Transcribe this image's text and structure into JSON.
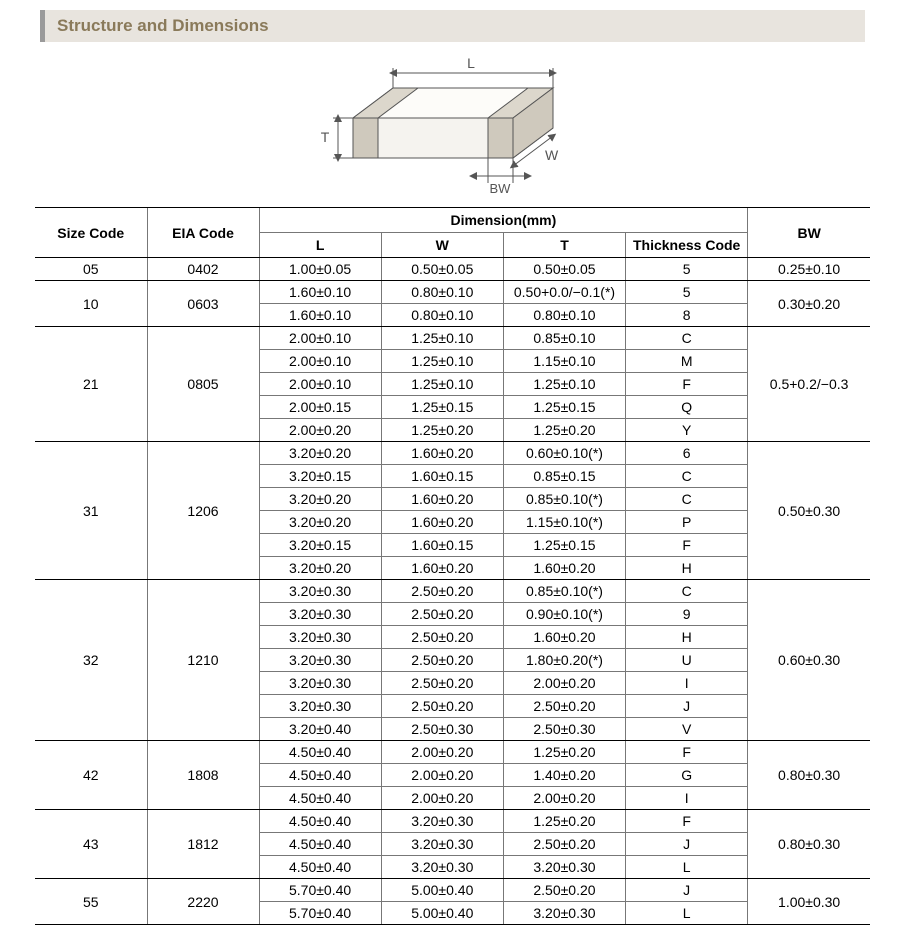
{
  "title": "Structure and Dimensions",
  "diagram": {
    "labels": {
      "L": "L",
      "W": "W",
      "T": "T",
      "BW": "BW"
    },
    "stroke": "#555555",
    "fill_body": "#f5f3ef",
    "fill_side": "#e9e6df",
    "fill_top": "#fdfcf9",
    "fill_band": "#cfc9bd",
    "label_color": "#555555",
    "label_fontsize": 14
  },
  "table": {
    "header": {
      "size": "Size Code",
      "eia": "EIA Code",
      "dim": "Dimension(mm)",
      "L": "L",
      "W": "W",
      "T": "T",
      "thick": "Thickness Code",
      "BW": "BW"
    },
    "groups": [
      {
        "size": "05",
        "eia": "0402",
        "bw": "0.25±0.10",
        "rows": [
          {
            "L": "1.00±0.05",
            "W": "0.50±0.05",
            "T": "0.50±0.05",
            "code": "5"
          }
        ]
      },
      {
        "size": "10",
        "eia": "0603",
        "bw": "0.30±0.20",
        "rows": [
          {
            "L": "1.60±0.10",
            "W": "0.80±0.10",
            "T": "0.50+0.0/−0.1(*)",
            "code": "5"
          },
          {
            "L": "1.60±0.10",
            "W": "0.80±0.10",
            "T": "0.80±0.10",
            "code": "8"
          }
        ]
      },
      {
        "size": "21",
        "eia": "0805",
        "bw": "0.5+0.2/−0.3",
        "rows": [
          {
            "L": "2.00±0.10",
            "W": "1.25±0.10",
            "T": "0.85±0.10",
            "code": "C"
          },
          {
            "L": "2.00±0.10",
            "W": "1.25±0.10",
            "T": "1.15±0.10",
            "code": "M"
          },
          {
            "L": "2.00±0.10",
            "W": "1.25±0.10",
            "T": "1.25±0.10",
            "code": "F"
          },
          {
            "L": "2.00±0.15",
            "W": "1.25±0.15",
            "T": "1.25±0.15",
            "code": "Q"
          },
          {
            "L": "2.00±0.20",
            "W": "1.25±0.20",
            "T": "1.25±0.20",
            "code": "Y"
          }
        ]
      },
      {
        "size": "31",
        "eia": "1206",
        "bw": "0.50±0.30",
        "rows": [
          {
            "L": "3.20±0.20",
            "W": "1.60±0.20",
            "T": "0.60±0.10(*)",
            "code": "6"
          },
          {
            "L": "3.20±0.15",
            "W": "1.60±0.15",
            "T": "0.85±0.15",
            "code": "C"
          },
          {
            "L": "3.20±0.20",
            "W": "1.60±0.20",
            "T": "0.85±0.10(*)",
            "code": "C"
          },
          {
            "L": "3.20±0.20",
            "W": "1.60±0.20",
            "T": "1.15±0.10(*)",
            "code": "P"
          },
          {
            "L": "3.20±0.15",
            "W": "1.60±0.15",
            "T": "1.25±0.15",
            "code": "F"
          },
          {
            "L": "3.20±0.20",
            "W": "1.60±0.20",
            "T": "1.60±0.20",
            "code": "H"
          }
        ]
      },
      {
        "size": "32",
        "eia": "1210",
        "bw": "0.60±0.30",
        "rows": [
          {
            "L": "3.20±0.30",
            "W": "2.50±0.20",
            "T": "0.85±0.10(*)",
            "code": "C"
          },
          {
            "L": "3.20±0.30",
            "W": "2.50±0.20",
            "T": "0.90±0.10(*)",
            "code": "9"
          },
          {
            "L": "3.20±0.30",
            "W": "2.50±0.20",
            "T": "1.60±0.20",
            "code": "H"
          },
          {
            "L": "3.20±0.30",
            "W": "2.50±0.20",
            "T": "1.80±0.20(*)",
            "code": "U"
          },
          {
            "L": "3.20±0.30",
            "W": "2.50±0.20",
            "T": "2.00±0.20",
            "code": "I"
          },
          {
            "L": "3.20±0.30",
            "W": "2.50±0.20",
            "T": "2.50±0.20",
            "code": "J"
          },
          {
            "L": "3.20±0.40",
            "W": "2.50±0.30",
            "T": "2.50±0.30",
            "code": "V"
          }
        ]
      },
      {
        "size": "42",
        "eia": "1808",
        "bw": "0.80±0.30",
        "rows": [
          {
            "L": "4.50±0.40",
            "W": "2.00±0.20",
            "T": "1.25±0.20",
            "code": "F"
          },
          {
            "L": "4.50±0.40",
            "W": "2.00±0.20",
            "T": "1.40±0.20",
            "code": "G"
          },
          {
            "L": "4.50±0.40",
            "W": "2.00±0.20",
            "T": "2.00±0.20",
            "code": "I"
          }
        ]
      },
      {
        "size": "43",
        "eia": "1812",
        "bw": "0.80±0.30",
        "rows": [
          {
            "L": "4.50±0.40",
            "W": "3.20±0.30",
            "T": "1.25±0.20",
            "code": "F"
          },
          {
            "L": "4.50±0.40",
            "W": "3.20±0.30",
            "T": "2.50±0.20",
            "code": "J"
          },
          {
            "L": "4.50±0.40",
            "W": "3.20±0.30",
            "T": "3.20±0.30",
            "code": "L"
          }
        ]
      },
      {
        "size": "55",
        "eia": "2220",
        "bw": "1.00±0.30",
        "rows": [
          {
            "L": "5.70±0.40",
            "W": "5.00±0.40",
            "T": "2.50±0.20",
            "code": "J"
          },
          {
            "L": "5.70±0.40",
            "W": "5.00±0.40",
            "T": "3.20±0.30",
            "code": "L"
          }
        ]
      }
    ]
  }
}
